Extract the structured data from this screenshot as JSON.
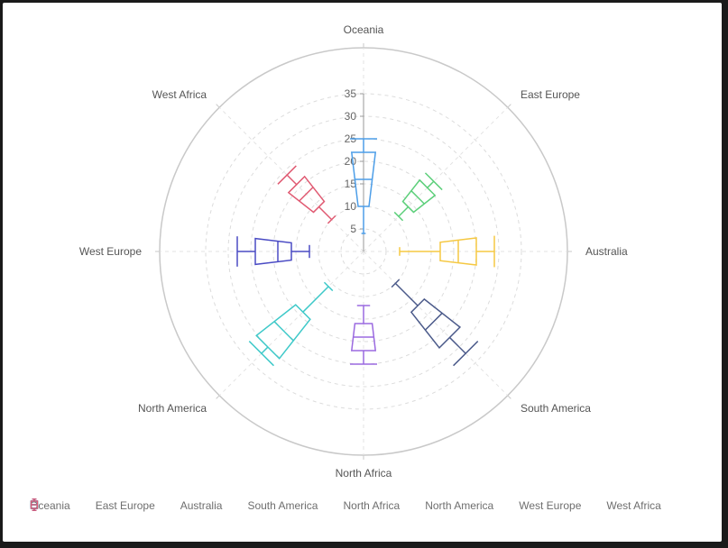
{
  "chart_data": {
    "type": "boxplot-polar",
    "radial_axis": {
      "min": 0,
      "max": 35,
      "ticks": [
        5,
        10,
        15,
        20,
        25,
        30,
        35
      ],
      "grid": true
    },
    "categories": [
      "Oceania",
      "East Europe",
      "Australia",
      "South America",
      "North Africa",
      "North America",
      "West Europe",
      "West Africa"
    ],
    "series": [
      {
        "name": "Oceania",
        "color": "#4d9ee8",
        "min": 4,
        "q1": 10,
        "median": 16,
        "q3": 22,
        "max": 25
      },
      {
        "name": "East Europe",
        "color": "#5ccf7a",
        "min": 11,
        "q1": 14,
        "median": 17,
        "q3": 20,
        "max": 22
      },
      {
        "name": "Australia",
        "color": "#f5c842",
        "min": 8,
        "q1": 17,
        "median": 21,
        "q3": 25,
        "max": 29
      },
      {
        "name": "South America",
        "color": "#4b5a8a",
        "min": 10,
        "q1": 17,
        "median": 22,
        "q3": 27,
        "max": 32
      },
      {
        "name": "North Africa",
        "color": "#9b6ae0",
        "min": 12,
        "q1": 16,
        "median": 19,
        "q3": 22,
        "max": 25
      },
      {
        "name": "North America",
        "color": "#3ec9c9",
        "min": 11,
        "q1": 19,
        "median": 25,
        "q3": 30,
        "max": 32
      },
      {
        "name": "West Europe",
        "color": "#4a4bc4",
        "min": 12,
        "q1": 16,
        "median": 19,
        "q3": 24,
        "max": 28
      },
      {
        "name": "West Africa",
        "color": "#e05a72",
        "min": 10,
        "q1": 14,
        "median": 18,
        "q3": 21,
        "max": 24
      }
    ],
    "legend": {
      "position": "bottom-left"
    }
  }
}
